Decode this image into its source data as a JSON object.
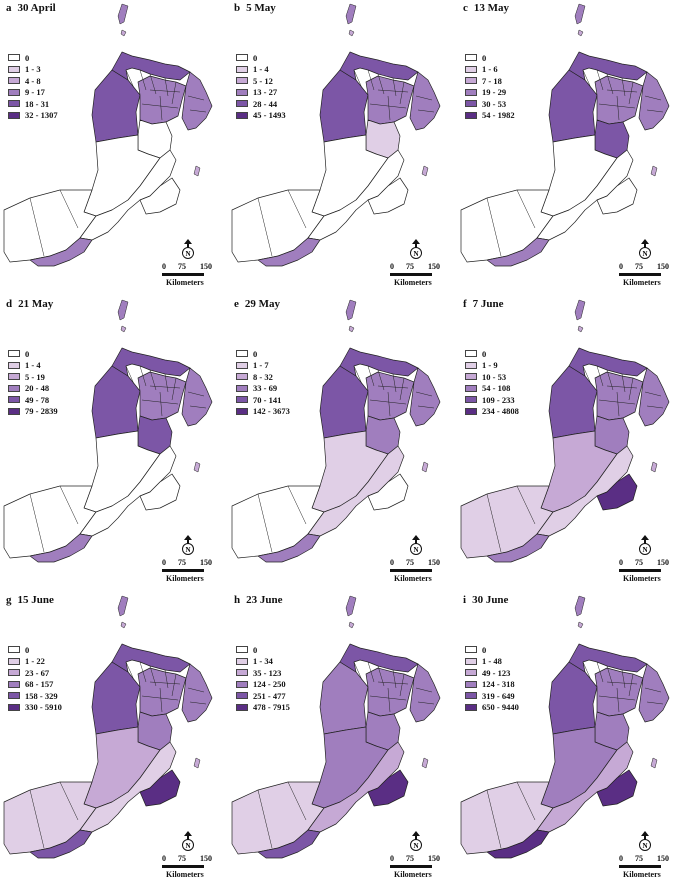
{
  "scale": {
    "ticks": [
      "0",
      "75",
      "150"
    ],
    "unit": "Kilometers"
  },
  "north_label": "N",
  "panels": [
    {
      "letter": "a",
      "date": "30 April",
      "legend": [
        "0",
        "1 - 3",
        "4 - 8",
        "9 - 17",
        "18 - 31",
        "32 - 1307"
      ],
      "fill": {
        "north": 4,
        "mid": 3,
        "east": 3,
        "west": 4,
        "center": 0,
        "south": 0,
        "southwest": 0,
        "coast": 0,
        "dhofar": 0,
        "salalah": 3
      }
    },
    {
      "letter": "b",
      "date": "5 May",
      "legend": [
        "0",
        "1 - 4",
        "5 - 12",
        "13 - 27",
        "28 - 44",
        "45 - 1493"
      ],
      "fill": {
        "north": 4,
        "mid": 3,
        "east": 3,
        "west": 4,
        "center": 1,
        "south": 0,
        "southwest": 0,
        "coast": 0,
        "dhofar": 0,
        "salalah": 3
      }
    },
    {
      "letter": "c",
      "date": "13 May",
      "legend": [
        "0",
        "1 - 6",
        "7 - 18",
        "19 - 29",
        "30 - 53",
        "54 - 1982"
      ],
      "fill": {
        "north": 4,
        "mid": 3,
        "east": 3,
        "west": 4,
        "center": 4,
        "south": 0,
        "southwest": 0,
        "coast": 0,
        "dhofar": 0,
        "salalah": 3
      }
    },
    {
      "letter": "d",
      "date": "21 May",
      "legend": [
        "0",
        "1 - 4",
        "5 - 19",
        "20 - 48",
        "49 - 78",
        "79 - 2839"
      ],
      "fill": {
        "north": 4,
        "mid": 3,
        "east": 3,
        "west": 4,
        "center": 4,
        "south": 0,
        "southwest": 0,
        "coast": 0,
        "dhofar": 0,
        "salalah": 3
      }
    },
    {
      "letter": "e",
      "date": "29 May",
      "legend": [
        "0",
        "1 - 7",
        "8 - 32",
        "33 - 69",
        "70 - 141",
        "142 - 3673"
      ],
      "fill": {
        "north": 4,
        "mid": 3,
        "east": 3,
        "west": 4,
        "center": 3,
        "south": 1,
        "southwest": 0,
        "coast": 1,
        "dhofar": 0,
        "salalah": 3
      }
    },
    {
      "letter": "f",
      "date": "7 June",
      "legend": [
        "0",
        "1 - 9",
        "10 - 53",
        "54 - 108",
        "109 - 233",
        "234 - 4808"
      ],
      "fill": {
        "north": 4,
        "mid": 3,
        "east": 3,
        "west": 4,
        "center": 3,
        "south": 2,
        "southwest": 1,
        "coast": 1,
        "dhofar": 5,
        "salalah": 3
      }
    },
    {
      "letter": "g",
      "date": "15 June",
      "legend": [
        "0",
        "1 - 22",
        "23 - 67",
        "68 - 157",
        "158 - 329",
        "330 - 5910"
      ],
      "fill": {
        "north": 4,
        "mid": 3,
        "east": 3,
        "west": 4,
        "center": 3,
        "south": 2,
        "southwest": 1,
        "coast": 1,
        "dhofar": 5,
        "salalah": 4
      }
    },
    {
      "letter": "h",
      "date": "23 June",
      "legend": [
        "0",
        "1 - 34",
        "35 - 123",
        "124 - 250",
        "251 - 477",
        "478 - 7915"
      ],
      "fill": {
        "north": 4,
        "mid": 3,
        "east": 3,
        "west": 3,
        "center": 3,
        "south": 3,
        "southwest": 1,
        "coast": 2,
        "dhofar": 5,
        "salalah": 4
      }
    },
    {
      "letter": "i",
      "date": "30 June",
      "legend": [
        "0",
        "1 - 48",
        "49 - 123",
        "124 - 318",
        "319 - 649",
        "650 - 9440"
      ],
      "fill": {
        "north": 4,
        "mid": 3,
        "east": 3,
        "west": 4,
        "center": 3,
        "south": 3,
        "southwest": 1,
        "coast": 2,
        "dhofar": 5,
        "salalah": 5
      }
    }
  ],
  "colors": [
    "#ffffff",
    "#e0cfe6",
    "#c6a9d5",
    "#a07ebe",
    "#7c56a6",
    "#5a2e84"
  ]
}
